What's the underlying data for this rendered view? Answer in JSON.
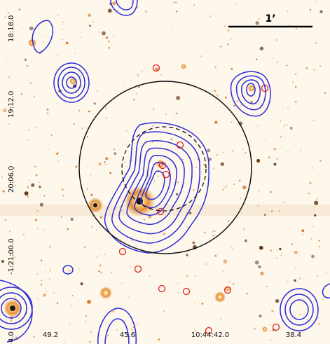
{
  "image": {
    "colors": {
      "background": "#fdf7ec",
      "sources": "#e07a10",
      "source_core": "#ffffff",
      "contours": "#2a2ad8",
      "circles": "#111111",
      "markers": "#e02020"
    },
    "scale_bar": {
      "label": "1’"
    },
    "axis": {
      "dec_labels": [
        "18:18.0",
        "19:12.0",
        "20:06.0",
        "-1:21:00.0",
        "4.0"
      ],
      "ra_labels": [
        "49.2",
        "45.6",
        "10:44:42.0",
        "38.4"
      ]
    }
  }
}
